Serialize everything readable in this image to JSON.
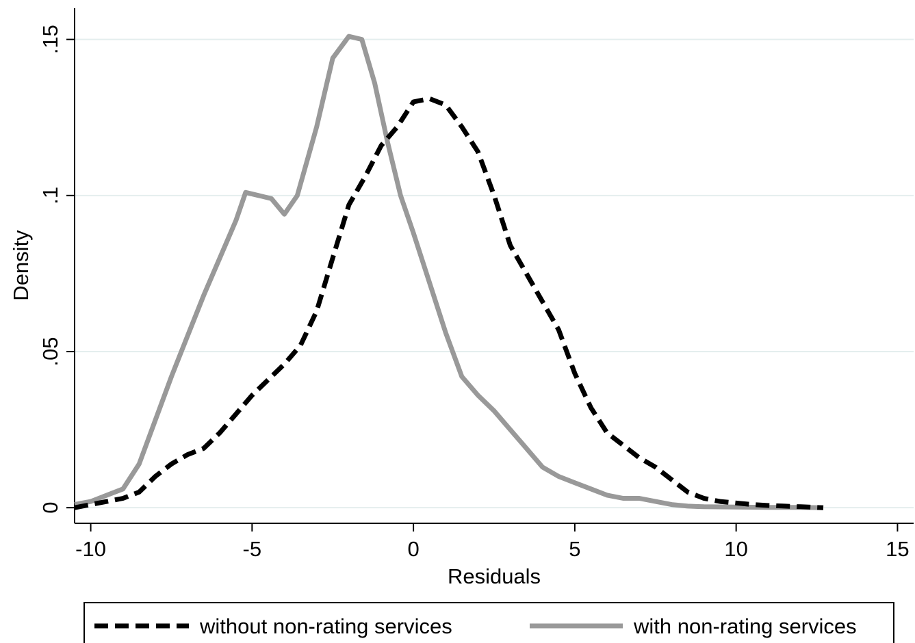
{
  "chart_data": {
    "type": "line",
    "xlabel": "Residuals",
    "ylabel": "Density",
    "xlim": [
      -10.5,
      15.5
    ],
    "ylim": [
      -0.005,
      0.16
    ],
    "xticks": [
      -10,
      -5,
      0,
      5,
      10,
      15
    ],
    "xtick_labels": [
      "-10",
      "-5",
      "0",
      "5",
      "10",
      "15"
    ],
    "yticks": [
      0,
      0.05,
      0.1,
      0.15
    ],
    "ytick_labels": [
      "0",
      ".05",
      ".1",
      ".15"
    ],
    "grid": "horizontal",
    "legend_position": "bottom",
    "series": [
      {
        "name": "without non-rating services",
        "color": "#000000",
        "style": "dashed",
        "x": [
          -10.5,
          -10.0,
          -9.5,
          -9.0,
          -8.5,
          -8.0,
          -7.5,
          -7.0,
          -6.5,
          -6.0,
          -5.5,
          -5.0,
          -4.5,
          -4.0,
          -3.5,
          -3.0,
          -2.5,
          -2.0,
          -1.5,
          -1.0,
          -0.5,
          0.0,
          0.5,
          1.0,
          1.5,
          2.0,
          2.5,
          3.0,
          3.5,
          4.0,
          4.5,
          5.0,
          5.5,
          6.0,
          6.5,
          7.0,
          7.5,
          8.0,
          8.5,
          9.0,
          9.5,
          10.0,
          10.5,
          11.0,
          11.5,
          12.0,
          12.7
        ],
        "y": [
          0.0,
          0.001,
          0.002,
          0.003,
          0.005,
          0.01,
          0.014,
          0.017,
          0.019,
          0.024,
          0.03,
          0.036,
          0.041,
          0.046,
          0.052,
          0.063,
          0.08,
          0.097,
          0.106,
          0.116,
          0.122,
          0.13,
          0.131,
          0.129,
          0.122,
          0.114,
          0.1,
          0.084,
          0.075,
          0.066,
          0.057,
          0.043,
          0.032,
          0.024,
          0.02,
          0.016,
          0.013,
          0.009,
          0.005,
          0.003,
          0.002,
          0.0015,
          0.001,
          0.0007,
          0.0005,
          0.0003,
          0.0
        ]
      },
      {
        "name": "with non-rating services",
        "color": "#999999",
        "style": "solid",
        "x": [
          -10.5,
          -10.0,
          -9.5,
          -9.0,
          -8.5,
          -8.0,
          -7.5,
          -7.0,
          -6.5,
          -6.0,
          -5.5,
          -5.2,
          -4.8,
          -4.4,
          -4.0,
          -3.6,
          -3.0,
          -2.5,
          -2.0,
          -1.6,
          -1.2,
          -0.8,
          -0.4,
          0.0,
          0.5,
          1.0,
          1.5,
          2.0,
          2.5,
          3.0,
          3.5,
          4.0,
          4.5,
          5.0,
          5.5,
          6.0,
          6.5,
          7.0,
          7.5,
          8.0,
          8.5,
          9.0,
          10.0,
          11.0,
          12.0,
          12.7
        ],
        "y": [
          0.001,
          0.002,
          0.004,
          0.006,
          0.014,
          0.028,
          0.042,
          0.055,
          0.068,
          0.08,
          0.092,
          0.101,
          0.1,
          0.099,
          0.094,
          0.1,
          0.122,
          0.144,
          0.151,
          0.15,
          0.136,
          0.117,
          0.1,
          0.088,
          0.072,
          0.056,
          0.042,
          0.036,
          0.031,
          0.025,
          0.019,
          0.013,
          0.01,
          0.008,
          0.006,
          0.004,
          0.003,
          0.003,
          0.002,
          0.001,
          0.0005,
          0.0003,
          0.0002,
          0.0001,
          0.0001,
          0.0
        ]
      }
    ]
  }
}
